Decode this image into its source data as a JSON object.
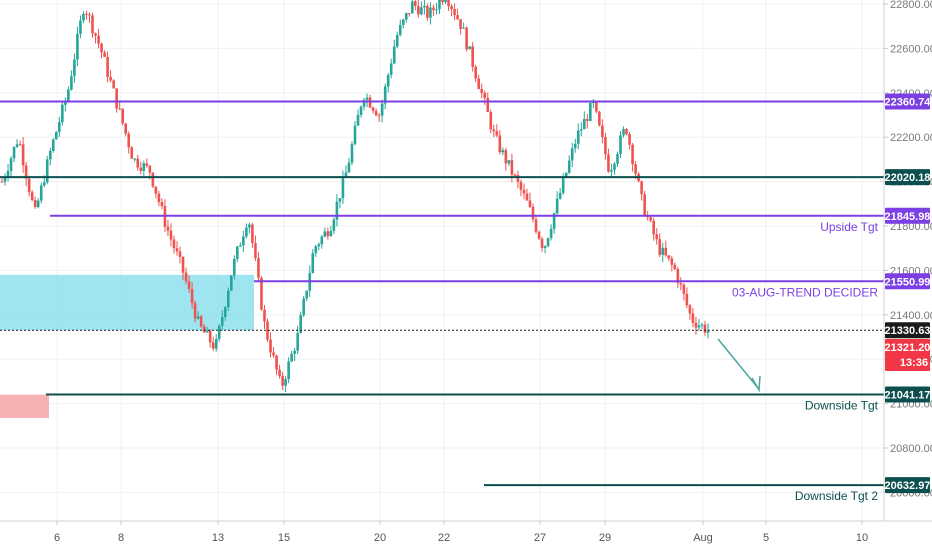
{
  "chart_data": {
    "type": "candlestick",
    "y_axis": {
      "ticks": [
        22800,
        22600,
        22400,
        22200,
        22000,
        21800,
        21600,
        21400,
        21200,
        21000,
        20800,
        20600
      ],
      "tick_labels": [
        "22800.00",
        "22600.00",
        "22400.00",
        "22200.00",
        "22000.00",
        "21800.00",
        "21600.00",
        "21400.00",
        "21200.00",
        "21000.00",
        "20800.00",
        "20600.00"
      ],
      "range": [
        20520,
        22820
      ]
    },
    "x_axis": {
      "tick_labels": [
        "6",
        "8",
        "13",
        "15",
        "20",
        "22",
        "27",
        "29",
        "Aug",
        "5",
        "10"
      ]
    },
    "levels": [
      {
        "value": 22360.74,
        "label": "22360.74",
        "color": "#7b3fe4",
        "annotation": ""
      },
      {
        "value": 22020.18,
        "label": "22020.18",
        "color": "#0d4f4f",
        "annotation": ""
      },
      {
        "value": 21845.98,
        "label": "21845.98",
        "color": "#7b3fe4",
        "annotation": "Upside Tgt"
      },
      {
        "value": 21550.99,
        "label": "21550.99",
        "color": "#7b3fe4",
        "annotation": "03-AUG-TREND DECIDER"
      },
      {
        "value": 21330.63,
        "label": "21330.63",
        "color": "#1a1a1a",
        "annotation": ""
      },
      {
        "value": 21041.17,
        "label": "21041.17",
        "color": "#0d4f4f",
        "annotation": "Downside Tgt"
      },
      {
        "value": 20632.97,
        "label": "20632.97",
        "color": "#0d4f4f",
        "annotation": "Downside Tgt 2"
      }
    ],
    "current_price": {
      "value": 21321.2,
      "label": "21321.20",
      "countdown": "13:36",
      "color": "#f23645"
    },
    "zones": [
      {
        "from": 21330,
        "to": 21580,
        "color": "#8ee0ee"
      },
      {
        "from": 20935,
        "to": 21040,
        "color": "#f3a3a6"
      }
    ],
    "candle_colors": {
      "up": "#26a69a",
      "down": "#ef5350"
    },
    "grid": true,
    "path_points": [
      22000,
      22200,
      21850,
      22150,
      22400,
      22800,
      22600,
      22350,
      22100,
      22050,
      21800,
      21600,
      21350,
      21250,
      21600,
      21850,
      21350,
      21070,
      21300,
      21700,
      21800,
      22050,
      22400,
      22300,
      22650,
      22800,
      22750,
      22850,
      22700,
      22450,
      22200,
      22050,
      21900,
      21700,
      21950,
      22200,
      22350,
      22050,
      22250,
      21900,
      21700,
      21600,
      21380,
      21330
    ]
  }
}
